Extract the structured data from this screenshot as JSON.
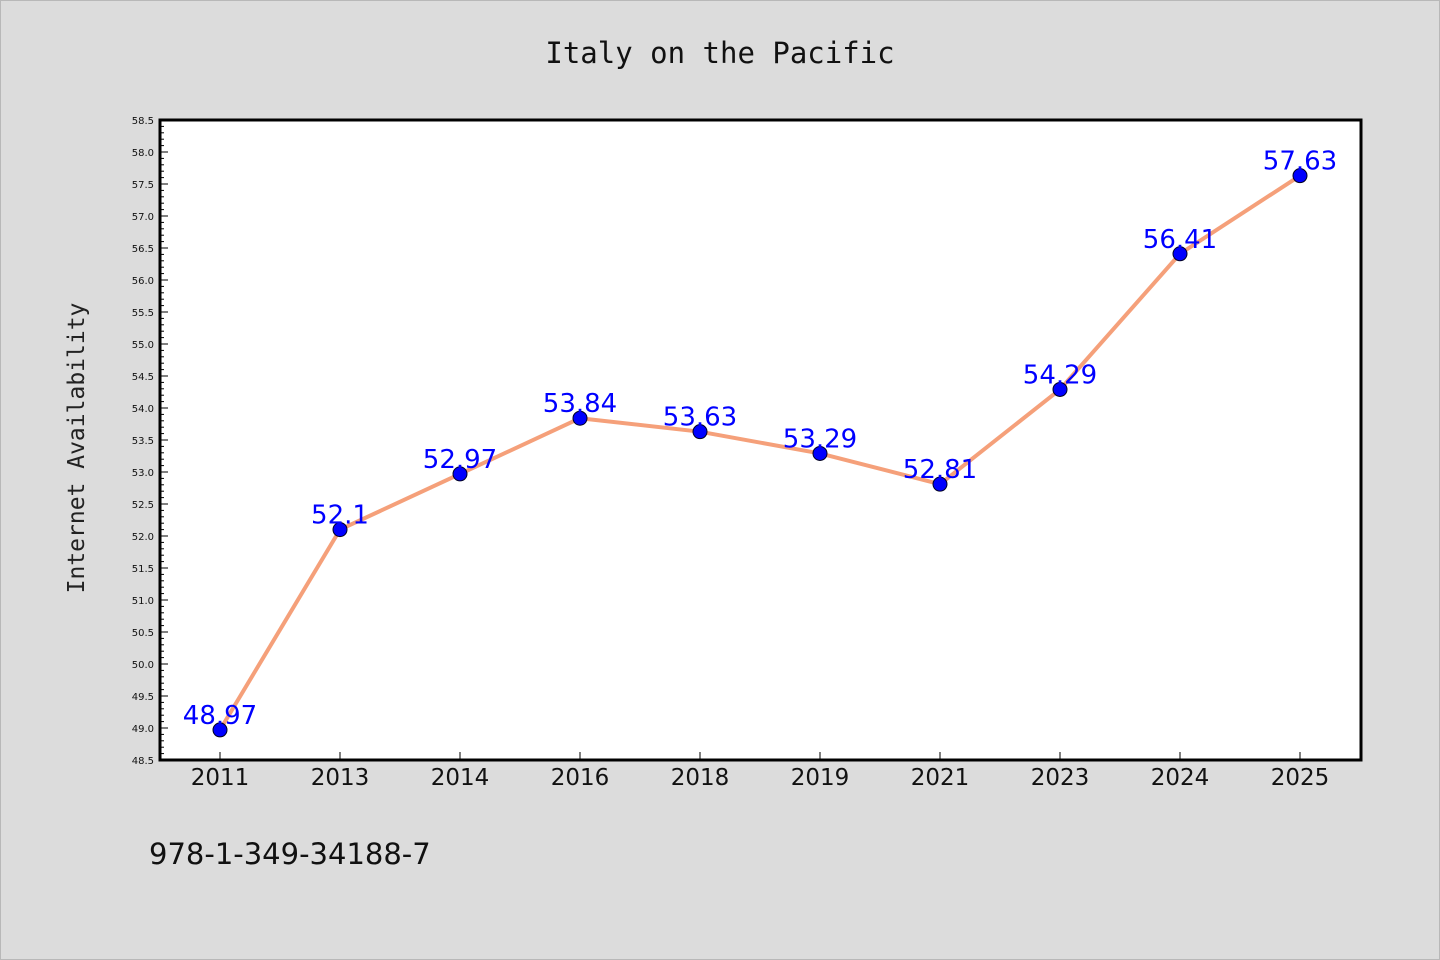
{
  "chart_data": {
    "type": "line",
    "title": "Italy on the Pacific",
    "ylabel": "Internet Availability",
    "xlabel": "",
    "categories": [
      "2011",
      "2013",
      "2014",
      "2016",
      "2018",
      "2019",
      "2021",
      "2023",
      "2024",
      "2025"
    ],
    "values": [
      48.97,
      52.1,
      52.97,
      53.84,
      53.63,
      53.29,
      52.81,
      54.29,
      56.41,
      57.63
    ],
    "data_labels": [
      "48.97",
      "52.1",
      "52.97",
      "53.84",
      "53.63",
      "53.29",
      "52.81",
      "54.29",
      "56.41",
      "57.63"
    ],
    "ylim": [
      48.5,
      58.5
    ],
    "y_major_step": 0.5,
    "y_tick_labels": [
      "48.5",
      "49.0",
      "49.5",
      "50.0",
      "50.5",
      "51.0",
      "51.5",
      "52.0",
      "52.5",
      "53.0",
      "53.5",
      "54.0",
      "54.5",
      "55.0",
      "55.5",
      "56.0",
      "56.5",
      "57.0",
      "57.5",
      "58.0",
      "58.5"
    ],
    "grid": false,
    "legend": "none",
    "line_color": "#f5a07a",
    "marker_color": "#0000ff",
    "label_color": "#0000ff",
    "annotation": "978-1-349-34188-7"
  }
}
